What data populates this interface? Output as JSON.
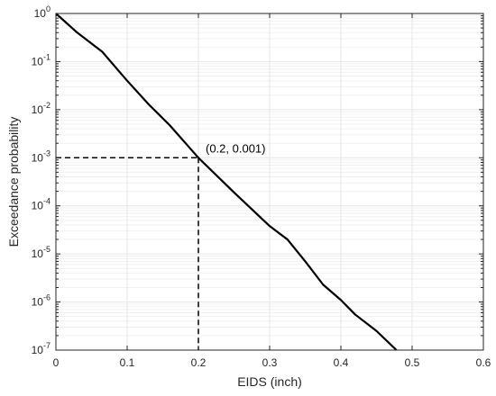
{
  "chart_data": {
    "type": "line",
    "title": "",
    "xlabel": "EIDS (inch)",
    "ylabel": "Exceedance probability",
    "xlim": [
      0,
      0.6
    ],
    "ylim": [
      1e-07,
      1
    ],
    "yscale": "log",
    "grid": true,
    "minor_grid": true,
    "xticks": [
      {
        "value": 0,
        "label": "0"
      },
      {
        "value": 0.1,
        "label": "0.1"
      },
      {
        "value": 0.2,
        "label": "0.2"
      },
      {
        "value": 0.3,
        "label": "0.3"
      },
      {
        "value": 0.4,
        "label": "0.4"
      },
      {
        "value": 0.5,
        "label": "0.5"
      },
      {
        "value": 0.6,
        "label": "0.6"
      }
    ],
    "yticks": [
      {
        "value": 1,
        "base": "10",
        "exp": "0"
      },
      {
        "value": 0.1,
        "base": "10",
        "exp": "-1"
      },
      {
        "value": 0.01,
        "base": "10",
        "exp": "-2"
      },
      {
        "value": 0.001,
        "base": "10",
        "exp": "-3"
      },
      {
        "value": 0.0001,
        "base": "10",
        "exp": "-4"
      },
      {
        "value": 1e-05,
        "base": "10",
        "exp": "-5"
      },
      {
        "value": 1e-06,
        "base": "10",
        "exp": "-6"
      },
      {
        "value": 1e-07,
        "base": "10",
        "exp": "-7"
      }
    ],
    "series": [
      {
        "color": "#000000",
        "x": [
          0,
          0.03,
          0.065,
          0.1,
          0.13,
          0.16,
          0.2,
          0.25,
          0.3,
          0.325,
          0.35,
          0.375,
          0.4,
          0.42,
          0.45,
          0.478
        ],
        "y": [
          1,
          0.4,
          0.16,
          0.04,
          0.013,
          0.0047,
          0.001,
          0.00019,
          3.8e-05,
          2e-05,
          7e-06,
          2.3e-06,
          1.1e-06,
          5.5e-07,
          2.5e-07,
          1e-07
        ]
      }
    ],
    "annotations": [
      {
        "x": 0.2,
        "y": 0.001,
        "label": "(0.2, 0.001)",
        "style": "dashed-guides"
      }
    ],
    "colors": {
      "line": "#000000",
      "grid": "#e6e6e6",
      "axis": "#262626"
    }
  }
}
